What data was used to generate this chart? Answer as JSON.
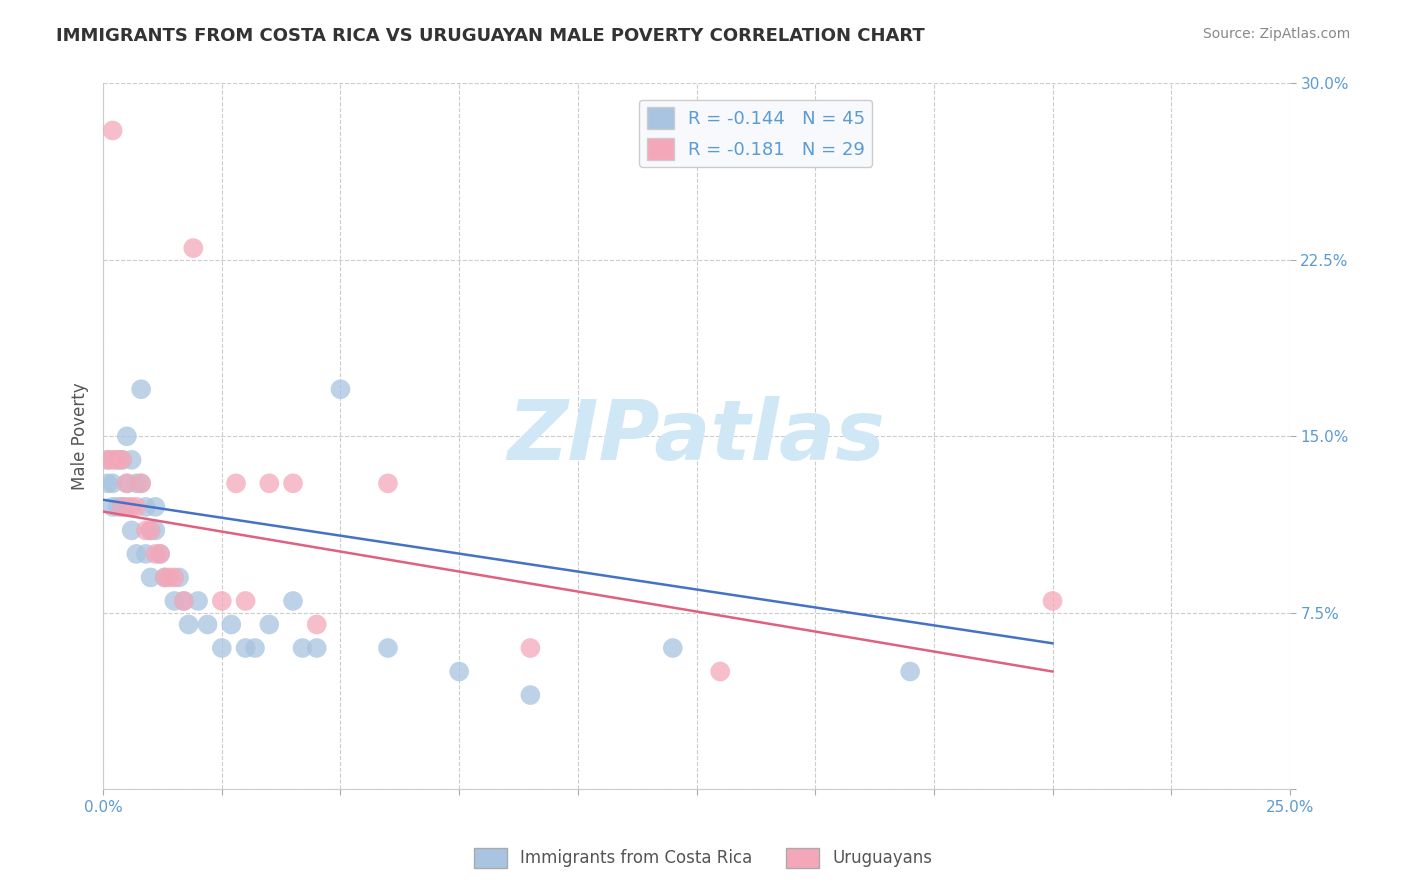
{
  "title": "IMMIGRANTS FROM COSTA RICA VS URUGUAYAN MALE POVERTY CORRELATION CHART",
  "source": "Source: ZipAtlas.com",
  "xlabel": "",
  "ylabel": "Male Poverty",
  "xlim": [
    0.0,
    0.25
  ],
  "ylim": [
    0.0,
    0.3
  ],
  "xticks": [
    0.0,
    0.025,
    0.05,
    0.075,
    0.1,
    0.125,
    0.15,
    0.175,
    0.2,
    0.225,
    0.25
  ],
  "xticklabels": [
    "0.0%",
    "",
    "",
    "",
    "",
    "",
    "",
    "",
    "",
    "",
    "25.0%"
  ],
  "yticks": [
    0.0,
    0.075,
    0.15,
    0.225,
    0.3
  ],
  "yticklabels": [
    "",
    "7.5%",
    "15.0%",
    "22.5%",
    "30.0%"
  ],
  "grid_color": "#cccccc",
  "background_color": "#ffffff",
  "watermark_text": "ZIPatlas",
  "series": [
    {
      "name": "Immigrants from Costa Rica",
      "R": -0.144,
      "N": 45,
      "color": "#a8c4e0",
      "line_color": "#4472c4",
      "x": [
        0.001,
        0.001,
        0.002,
        0.002,
        0.003,
        0.003,
        0.004,
        0.004,
        0.005,
        0.005,
        0.005,
        0.006,
        0.006,
        0.007,
        0.007,
        0.008,
        0.008,
        0.009,
        0.009,
        0.01,
        0.01,
        0.011,
        0.011,
        0.012,
        0.013,
        0.015,
        0.016,
        0.017,
        0.018,
        0.02,
        0.022,
        0.025,
        0.027,
        0.03,
        0.032,
        0.035,
        0.04,
        0.042,
        0.045,
        0.05,
        0.06,
        0.075,
        0.09,
        0.12,
        0.17
      ],
      "y": [
        0.14,
        0.13,
        0.13,
        0.12,
        0.14,
        0.12,
        0.14,
        0.12,
        0.15,
        0.13,
        0.12,
        0.14,
        0.11,
        0.13,
        0.1,
        0.17,
        0.13,
        0.12,
        0.1,
        0.11,
        0.09,
        0.11,
        0.12,
        0.1,
        0.09,
        0.08,
        0.09,
        0.08,
        0.07,
        0.08,
        0.07,
        0.06,
        0.07,
        0.06,
        0.06,
        0.07,
        0.08,
        0.06,
        0.06,
        0.17,
        0.06,
        0.05,
        0.04,
        0.06,
        0.05
      ]
    },
    {
      "name": "Uruguayans",
      "R": -0.181,
      "N": 29,
      "color": "#f4a7b9",
      "line_color": "#e06080",
      "x": [
        0.001,
        0.002,
        0.002,
        0.003,
        0.004,
        0.004,
        0.005,
        0.006,
        0.007,
        0.008,
        0.009,
        0.01,
        0.011,
        0.012,
        0.013,
        0.014,
        0.015,
        0.017,
        0.019,
        0.025,
        0.028,
        0.03,
        0.035,
        0.04,
        0.045,
        0.06,
        0.09,
        0.13,
        0.2
      ],
      "y": [
        0.14,
        0.28,
        0.14,
        0.14,
        0.14,
        0.12,
        0.13,
        0.12,
        0.12,
        0.13,
        0.11,
        0.11,
        0.1,
        0.1,
        0.09,
        0.09,
        0.09,
        0.08,
        0.23,
        0.08,
        0.13,
        0.08,
        0.13,
        0.13,
        0.07,
        0.13,
        0.06,
        0.05,
        0.08
      ]
    }
  ],
  "trendline_x_start": 0.0,
  "trendline_x_end": 0.2,
  "trendline_blue_y_start": 0.123,
  "trendline_blue_y_end": 0.062,
  "trendline_pink_y_start": 0.118,
  "trendline_pink_y_end": 0.05,
  "legend_items": [
    {
      "label": "R = -0.144   N = 45",
      "color": "#a8c4e0"
    },
    {
      "label": "R = -0.181   N = 29",
      "color": "#f4a7b9"
    }
  ],
  "title_color": "#333333",
  "axis_color": "#5b9bd5",
  "tick_color": "#5b9bd5",
  "watermark_color": "#d0e8f5"
}
